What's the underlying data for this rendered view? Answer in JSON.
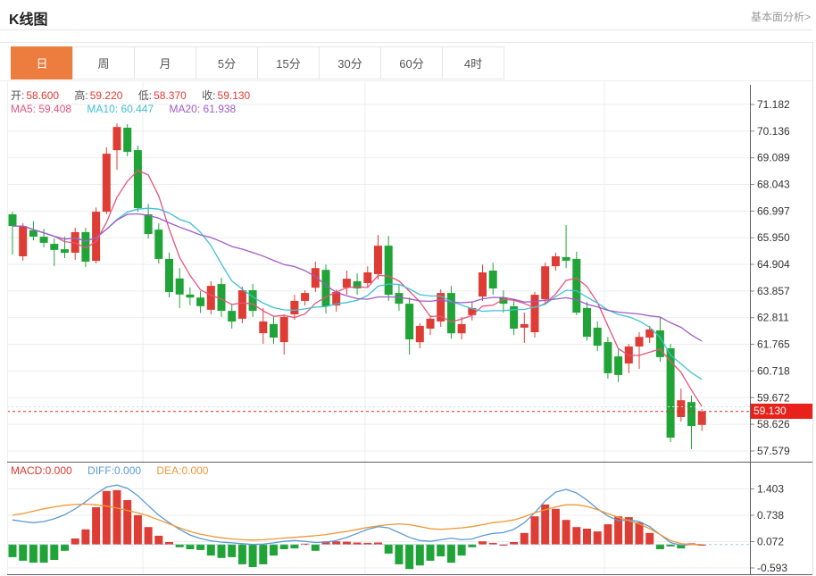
{
  "header": {
    "title": "K线图",
    "link": "基本面分析>"
  },
  "tabs": {
    "items": [
      "日",
      "周",
      "月",
      "5分",
      "15分",
      "30分",
      "60分",
      "4时"
    ],
    "active": "日"
  },
  "ohlc": {
    "open_label": "开:",
    "open": "58.600",
    "high_label": "高:",
    "high": "59.220",
    "low_label": "低:",
    "low": "58.370",
    "close_label": "收:",
    "close": "59.130"
  },
  "ma": {
    "ma5_label": "MA5:",
    "ma5": "59.408",
    "ma10_label": "MA10:",
    "ma10": "60.447",
    "ma20_label": "MA20:",
    "ma20": "61.938"
  },
  "macd_header": {
    "macd_label": "MACD:",
    "macd": "0.000",
    "diff_label": "DIFF:",
    "diff": "0.000",
    "dea_label": "DEA:",
    "dea": "0.000"
  },
  "colors": {
    "up": "#dd3d35",
    "down": "#21a437",
    "ma5": "#e8537c",
    "ma10": "#3fc1d5",
    "ma20": "#a05bc8",
    "diff": "#5b9bd5",
    "dea": "#ef9836",
    "value_red": "#e23a30",
    "tag_bg": "#e8221b",
    "price_line": "#e02b22",
    "accent_tab": "#ed7d3e"
  },
  "chart_data": {
    "type": "candlestick+macd",
    "title": "K线图 (daily K-line with MACD sub-chart)",
    "legend": [
      "MA5",
      "MA10",
      "MA20",
      "MACD",
      "DIFF",
      "DEA"
    ],
    "price_axis_ticks": [
      "71.182",
      "70.136",
      "69.089",
      "68.043",
      "66.997",
      "65.950",
      "64.904",
      "63.857",
      "62.811",
      "61.765",
      "60.718",
      "59.672",
      "58.626",
      "57.579"
    ],
    "macd_axis_ticks": [
      "1.403",
      "0.738",
      "0.072",
      "-0.593"
    ],
    "last_price": "59.130",
    "price_axis_range": [
      57.579,
      71.182
    ],
    "macd_axis_range": [
      -0.593,
      1.403
    ],
    "ma_periods": [
      5,
      10,
      20
    ],
    "candles": [
      [
        66.87,
        66.97,
        65.29,
        66.41
      ],
      [
        65.22,
        66.52,
        65.05,
        66.41
      ],
      [
        66.24,
        66.6,
        65.85,
        65.99
      ],
      [
        65.99,
        66.3,
        65.57,
        65.75
      ],
      [
        65.71,
        65.92,
        64.84,
        65.47
      ],
      [
        65.5,
        65.99,
        65.15,
        65.36
      ],
      [
        65.36,
        66.34,
        65.08,
        66.17
      ],
      [
        66.17,
        66.34,
        64.8,
        65.01
      ],
      [
        65.04,
        67.14,
        64.94,
        66.97
      ],
      [
        66.97,
        69.5,
        66.87,
        69.25
      ],
      [
        69.39,
        70.44,
        68.62,
        70.3
      ],
      [
        70.27,
        70.41,
        69.15,
        69.32
      ],
      [
        69.39,
        69.57,
        66.97,
        67.11
      ],
      [
        66.87,
        67.28,
        65.92,
        66.1
      ],
      [
        66.27,
        66.52,
        64.94,
        65.12
      ],
      [
        65.12,
        65.36,
        63.61,
        63.82
      ],
      [
        64.35,
        64.76,
        63.19,
        63.72
      ],
      [
        63.72,
        64.0,
        63.3,
        63.6
      ],
      [
        63.6,
        63.85,
        63.0,
        63.26
      ],
      [
        63.12,
        64.24,
        62.94,
        64.06
      ],
      [
        64.13,
        64.38,
        62.84,
        63.08
      ],
      [
        63.08,
        63.36,
        62.38,
        62.66
      ],
      [
        62.77,
        64.03,
        62.59,
        63.89
      ],
      [
        63.89,
        64.13,
        62.84,
        63.08
      ],
      [
        62.2,
        63.19,
        61.78,
        62.66
      ],
      [
        62.56,
        62.84,
        61.78,
        62.03
      ],
      [
        61.85,
        62.94,
        61.36,
        62.84
      ],
      [
        62.94,
        63.71,
        62.73,
        63.47
      ],
      [
        63.47,
        63.89,
        63.29,
        63.78
      ],
      [
        63.99,
        65.01,
        63.82,
        64.76
      ],
      [
        64.69,
        64.9,
        62.98,
        63.26
      ],
      [
        63.29,
        63.92,
        63.05,
        63.82
      ],
      [
        63.99,
        64.66,
        63.71,
        64.34
      ],
      [
        64.24,
        64.55,
        63.71,
        63.96
      ],
      [
        64.17,
        64.83,
        63.99,
        64.59
      ],
      [
        64.52,
        66.06,
        64.31,
        65.64
      ],
      [
        65.64,
        66.02,
        63.47,
        63.71
      ],
      [
        63.78,
        64.13,
        63.08,
        63.36
      ],
      [
        63.36,
        63.61,
        61.36,
        61.96
      ],
      [
        61.85,
        62.59,
        61.61,
        62.49
      ],
      [
        62.38,
        62.91,
        62.13,
        62.77
      ],
      [
        62.66,
        63.92,
        62.45,
        63.78
      ],
      [
        63.78,
        64.06,
        61.99,
        62.2
      ],
      [
        62.2,
        62.84,
        61.96,
        62.56
      ],
      [
        62.91,
        63.43,
        62.7,
        63.19
      ],
      [
        63.64,
        64.9,
        63.47,
        64.59
      ],
      [
        64.66,
        64.97,
        63.71,
        63.96
      ],
      [
        63.61,
        63.89,
        63.01,
        63.36
      ],
      [
        63.26,
        63.54,
        62.13,
        62.38
      ],
      [
        62.42,
        63.01,
        61.82,
        62.56
      ],
      [
        62.24,
        63.82,
        62.03,
        63.71
      ],
      [
        63.54,
        64.97,
        63.36,
        64.83
      ],
      [
        64.83,
        65.36,
        64.66,
        65.22
      ],
      [
        65.19,
        66.45,
        64.76,
        65.05
      ],
      [
        65.12,
        65.4,
        62.91,
        63.01
      ],
      [
        63.19,
        63.43,
        61.92,
        62.06
      ],
      [
        62.42,
        62.66,
        61.5,
        61.71
      ],
      [
        61.85,
        62.06,
        60.42,
        60.63
      ],
      [
        61.29,
        61.57,
        60.28,
        60.56
      ],
      [
        61.01,
        61.78,
        60.63,
        61.68
      ],
      [
        61.68,
        62.24,
        60.8,
        62.06
      ],
      [
        62.03,
        62.49,
        61.82,
        62.35
      ],
      [
        62.31,
        62.84,
        61.08,
        61.26
      ],
      [
        61.61,
        61.78,
        57.93,
        58.1
      ],
      [
        58.91,
        60.03,
        58.73,
        59.57
      ],
      [
        59.5,
        59.75,
        57.65,
        58.56
      ],
      [
        58.6,
        59.22,
        58.37,
        59.13
      ]
    ],
    "macd": {
      "bars": [
        -0.32,
        -0.41,
        -0.46,
        -0.46,
        -0.39,
        -0.16,
        0.15,
        0.38,
        0.94,
        1.35,
        1.37,
        1.12,
        0.74,
        0.44,
        0.22,
        0.06,
        -0.07,
        -0.12,
        -0.14,
        -0.28,
        -0.34,
        -0.32,
        -0.5,
        -0.57,
        -0.5,
        -0.28,
        -0.12,
        -0.1,
        0.02,
        -0.16,
        0.08,
        0.08,
        0.07,
        0.05,
        0.04,
        0.05,
        -0.23,
        -0.5,
        -0.62,
        -0.53,
        -0.41,
        -0.3,
        -0.46,
        -0.28,
        -0.07,
        0.08,
        0.04,
        0.0,
        0.06,
        0.29,
        0.71,
        1.01,
        0.9,
        0.62,
        0.44,
        0.4,
        0.33,
        0.51,
        0.71,
        0.69,
        0.56,
        0.29,
        -0.12,
        -0.05,
        -0.1,
        0.03,
        0.0
      ],
      "diff": [
        0.62,
        0.58,
        0.55,
        0.58,
        0.65,
        0.75,
        0.9,
        1.08,
        1.28,
        1.45,
        1.5,
        1.42,
        1.23,
        0.98,
        0.74,
        0.55,
        0.38,
        0.24,
        0.15,
        0.09,
        0.06,
        0.04,
        0.02,
        0.0,
        0.01,
        0.04,
        0.08,
        0.1,
        0.08,
        0.05,
        0.06,
        0.1,
        0.18,
        0.28,
        0.38,
        0.45,
        0.42,
        0.3,
        0.18,
        0.1,
        0.08,
        0.12,
        0.16,
        0.12,
        0.14,
        0.22,
        0.28,
        0.3,
        0.38,
        0.55,
        0.8,
        1.1,
        1.32,
        1.39,
        1.3,
        1.12,
        0.9,
        0.72,
        0.6,
        0.62,
        0.58,
        0.45,
        0.25,
        0.05,
        -0.02,
        0.0,
        -0.01
      ],
      "dea": [
        0.74,
        0.78,
        0.84,
        0.9,
        0.95,
        0.99,
        1.01,
        1.02,
        1.0,
        0.97,
        0.92,
        0.86,
        0.8,
        0.72,
        0.62,
        0.52,
        0.42,
        0.33,
        0.26,
        0.21,
        0.17,
        0.14,
        0.12,
        0.11,
        0.12,
        0.14,
        0.16,
        0.18,
        0.2,
        0.22,
        0.25,
        0.29,
        0.33,
        0.38,
        0.43,
        0.47,
        0.5,
        0.52,
        0.5,
        0.45,
        0.4,
        0.38,
        0.4,
        0.42,
        0.45,
        0.5,
        0.55,
        0.58,
        0.62,
        0.7,
        0.8,
        0.88,
        0.95,
        1.0,
        1.0,
        0.96,
        0.88,
        0.78,
        0.68,
        0.6,
        0.52,
        0.4,
        0.25,
        0.1,
        0.02,
        0.0,
        0.0
      ]
    }
  }
}
